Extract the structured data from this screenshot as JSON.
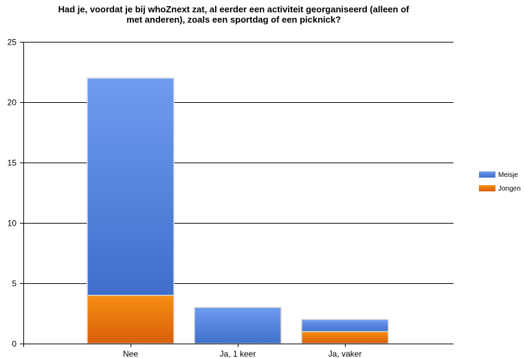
{
  "chart_data": {
    "type": "bar",
    "stacked": true,
    "title_lines": [
      "Had je, voordat je bij whoZnext zat, al eerder een activiteit georganiseerd (alleen of",
      "met anderen), zoals een sportdag of een picknick?"
    ],
    "categories": [
      "Nee",
      "Ja, 1 keer",
      "Ja, vaker"
    ],
    "series": [
      {
        "name": "Jongen",
        "values": [
          4,
          0,
          1
        ],
        "color": "#e8760f"
      },
      {
        "name": "Meisje",
        "values": [
          18,
          3,
          1
        ],
        "color": "#4f82dd"
      }
    ],
    "legend_order": [
      "Meisje",
      "Jongen"
    ],
    "legend_position": "right",
    "ylim": [
      0,
      25
    ],
    "yticks": [
      0,
      5,
      10,
      15,
      20,
      25
    ],
    "grid": true
  }
}
